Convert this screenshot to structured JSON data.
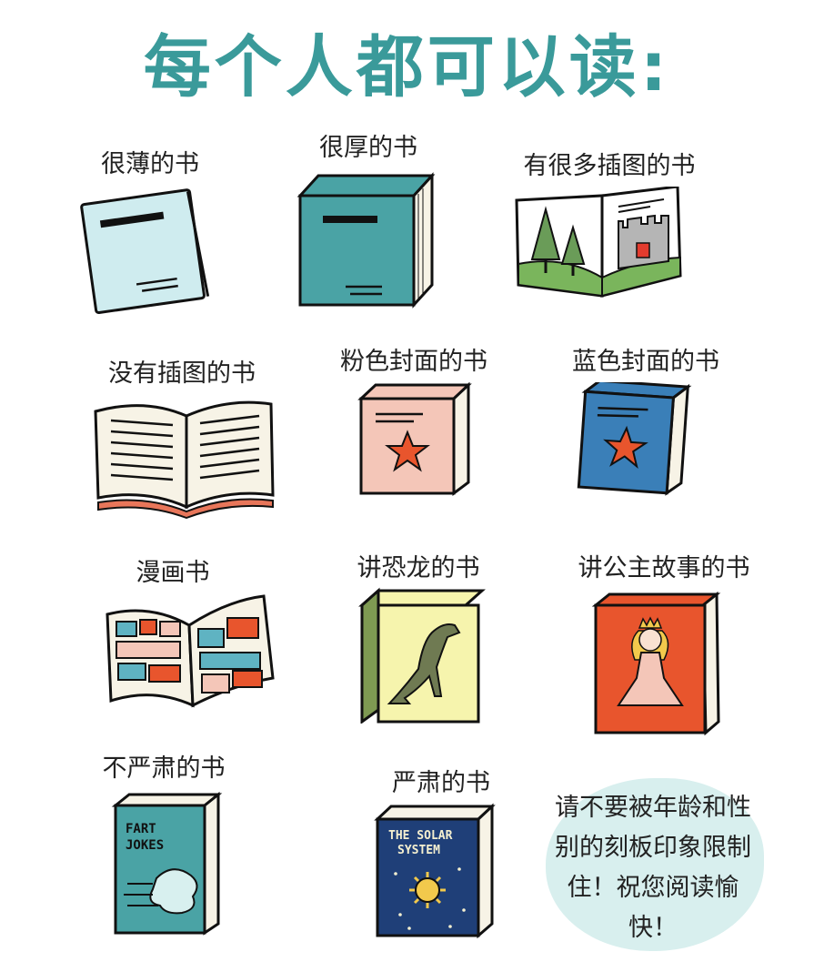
{
  "title": "每个人都可以读:",
  "books": [
    {
      "label": "很薄的书",
      "icon": "thin-book-icon"
    },
    {
      "label": "很厚的书",
      "icon": "thick-book-icon"
    },
    {
      "label": "有很多插图的书",
      "icon": "illustrated-book-icon"
    },
    {
      "label": "没有插图的书",
      "icon": "text-only-book-icon"
    },
    {
      "label": "粉色封面的书",
      "icon": "pink-book-icon"
    },
    {
      "label": "蓝色封面的书",
      "icon": "blue-book-icon"
    },
    {
      "label": "漫画书",
      "icon": "comic-book-icon"
    },
    {
      "label": "讲恐龙的书",
      "icon": "dinosaur-book-icon"
    },
    {
      "label": "讲公主故事的书",
      "icon": "princess-book-icon"
    },
    {
      "label": "不严肃的书",
      "icon": "funny-book-icon",
      "cover_text": "FART JOKES"
    },
    {
      "label": "严肃的书",
      "icon": "serious-book-icon",
      "cover_text": "THE SOLAR SYSTEM"
    }
  ],
  "note": "请不要被年龄和性别的刻板印象限制住！祝您阅读愉快！",
  "colors": {
    "title": "#3a9a9a",
    "teal": "#4aa3a5",
    "light_blue": "#cfecef",
    "pink": "#f4c6b8",
    "blue": "#3a7fb8",
    "orange_red": "#e8552d",
    "yellow": "#f6f4ad",
    "navy": "#1f3f78"
  }
}
